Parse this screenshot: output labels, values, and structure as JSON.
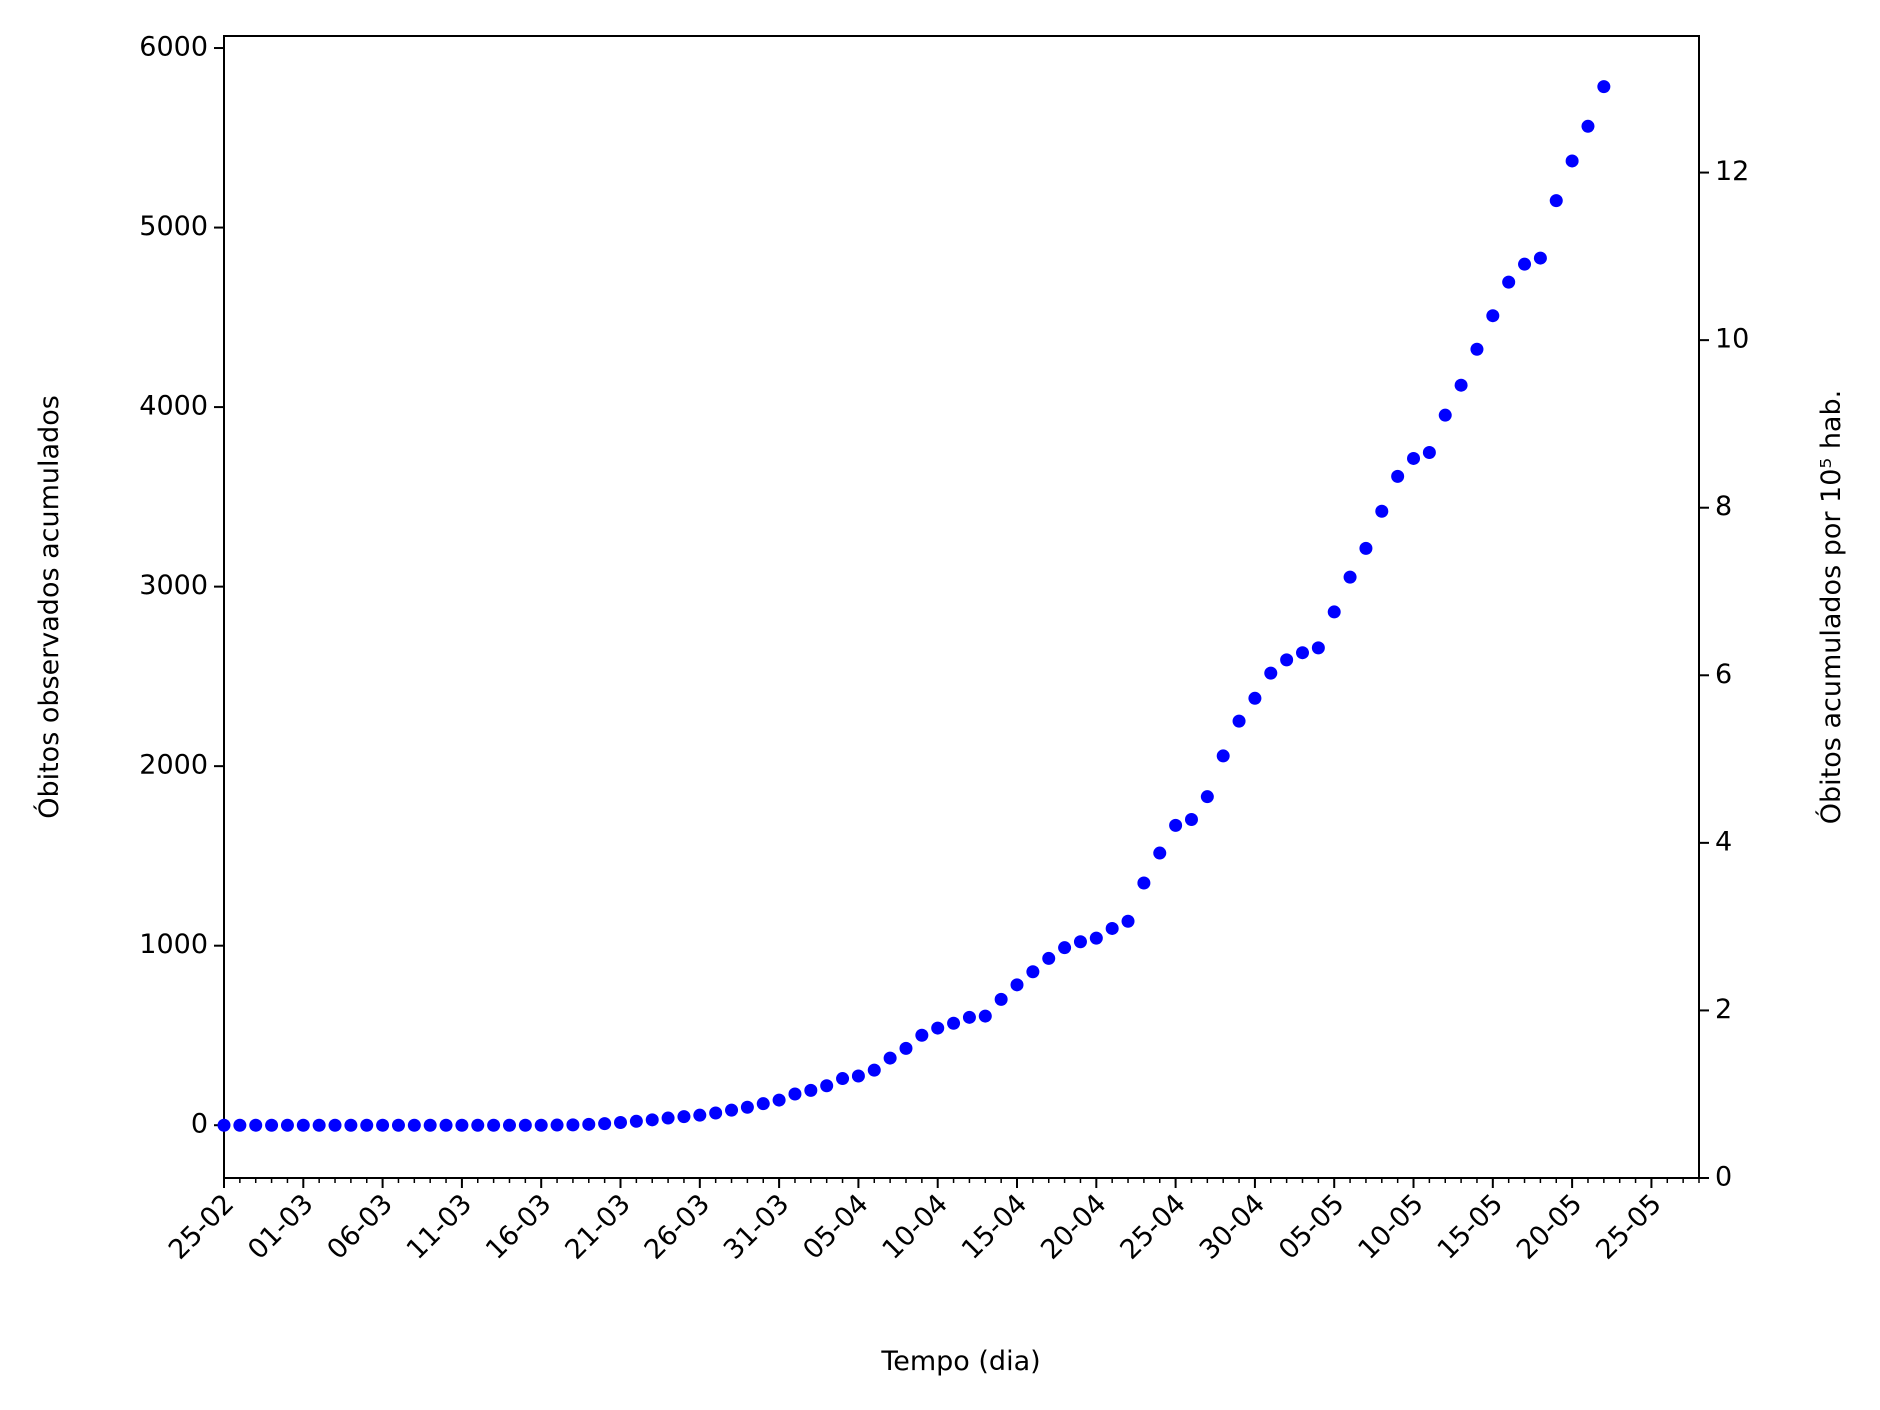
{
  "chart_data": {
    "type": "scatter",
    "xlabel": "Tempo (dia)",
    "ylabel": "Óbitos observados acumulados",
    "y2label": "Óbitos acumulados por 10⁵ hab.",
    "x": [
      "25-02",
      "26-02",
      "27-02",
      "28-02",
      "29-02",
      "01-03",
      "02-03",
      "03-03",
      "04-03",
      "05-03",
      "06-03",
      "07-03",
      "08-03",
      "09-03",
      "10-03",
      "11-03",
      "12-03",
      "13-03",
      "14-03",
      "15-03",
      "16-03",
      "17-03",
      "18-03",
      "19-03",
      "20-03",
      "21-03",
      "22-03",
      "23-03",
      "24-03",
      "25-03",
      "26-03",
      "27-03",
      "28-03",
      "29-03",
      "30-03",
      "31-03",
      "01-04",
      "02-04",
      "03-04",
      "04-04",
      "05-04",
      "06-04",
      "07-04",
      "08-04",
      "09-04",
      "10-04",
      "11-04",
      "12-04",
      "13-04",
      "14-04",
      "15-04",
      "16-04",
      "17-04",
      "18-04",
      "19-04",
      "20-04",
      "21-04",
      "22-04",
      "23-04",
      "24-04",
      "25-04",
      "26-04",
      "27-04",
      "28-04",
      "29-04",
      "30-04",
      "01-05",
      "02-05",
      "03-05",
      "04-05",
      "05-05",
      "06-05",
      "07-05",
      "08-05",
      "09-05",
      "10-05",
      "11-05",
      "12-05",
      "13-05",
      "14-05",
      "15-05",
      "16-05",
      "17-05",
      "18-05",
      "19-05",
      "20-05",
      "21-05",
      "22-05"
    ],
    "series": [
      {
        "color": "#0000ff",
        "values": [
          0,
          0,
          0,
          0,
          0,
          0,
          0,
          0,
          0,
          0,
          0,
          0,
          0,
          0,
          0,
          0,
          0,
          0,
          0,
          0,
          0,
          1,
          2,
          5,
          9,
          15,
          22,
          30,
          40,
          48,
          56,
          68,
          84,
          100,
          120,
          140,
          174,
          194,
          220,
          260,
          274,
          307,
          374,
          428,
          501,
          541,
          568,
          601,
          608,
          701,
          782,
          855,
          929,
          989,
          1022,
          1042,
          1096,
          1136,
          1349,
          1516,
          1670,
          1703,
          1830,
          2057,
          2251,
          2378,
          2518,
          2592,
          2632,
          2659,
          2859,
          3053,
          3213,
          3420,
          3614,
          3714,
          3747,
          3955,
          4122,
          4322,
          4509,
          4696,
          4796,
          4830,
          5150,
          5371,
          5564,
          5785
        ]
      }
    ],
    "xlim": [
      "25-02",
      "28-05"
    ],
    "xticks": [
      "25-02",
      "01-03",
      "06-03",
      "11-03",
      "16-03",
      "21-03",
      "26-03",
      "31-03",
      "05-04",
      "10-04",
      "15-04",
      "20-04",
      "25-04",
      "30-04",
      "05-05",
      "10-05",
      "15-05",
      "20-05",
      "25-05"
    ],
    "ylim": [
      -294,
      6067
    ],
    "yticks": [
      0,
      1000,
      2000,
      3000,
      4000,
      5000,
      6000
    ],
    "y2lim": [
      0,
      13.63
    ],
    "y2ticks": [
      0,
      2,
      4,
      6,
      8,
      10,
      12
    ]
  }
}
